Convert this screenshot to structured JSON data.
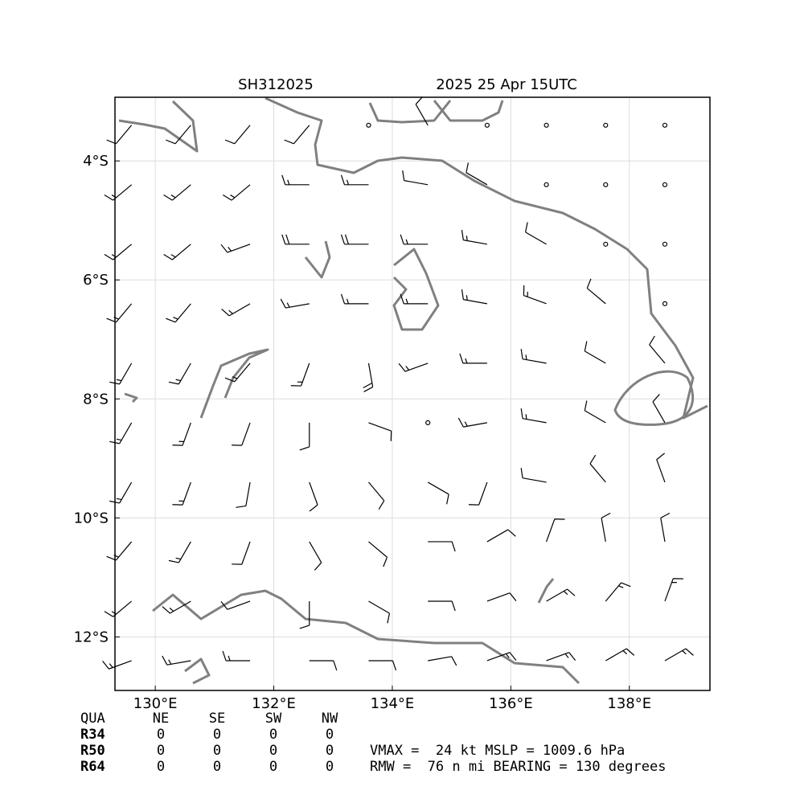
{
  "chart_data": {
    "type": "wind-barbs",
    "title_left": "SH312025",
    "title_right": "2025 25 Apr 15UTC",
    "xlim": [
      129.32,
      139.36
    ],
    "ylim": [
      -12.9,
      -2.93
    ],
    "xticks": [
      {
        "value": 130,
        "label": "130°E"
      },
      {
        "value": 132,
        "label": "132°E"
      },
      {
        "value": 134,
        "label": "134°E"
      },
      {
        "value": 136,
        "label": "136°E"
      },
      {
        "value": 138,
        "label": "138°E"
      }
    ],
    "yticks": [
      {
        "value": -4,
        "label": "4°S"
      },
      {
        "value": -6,
        "label": "6°S"
      },
      {
        "value": -8,
        "label": "8°S"
      },
      {
        "value": -10,
        "label": "10°S"
      },
      {
        "value": -12,
        "label": "12°S"
      }
    ],
    "grid": true,
    "barb_color": "#000000",
    "coast_color": "#808080",
    "barbs": {
      "lons": [
        129.6,
        130.6,
        131.6,
        132.6,
        133.6,
        134.6,
        135.6,
        136.6,
        137.6,
        138.6
      ],
      "lats": [
        -3.4,
        -4.4,
        -5.4,
        -6.4,
        -7.4,
        -8.4,
        -9.4,
        -10.4,
        -11.4,
        -12.4
      ],
      "dir": [
        [
          220,
          220,
          220,
          220,
          0,
          330,
          0,
          0,
          0,
          0
        ],
        [
          230,
          230,
          230,
          270,
          270,
          280,
          300,
          0,
          0,
          0
        ],
        [
          230,
          230,
          250,
          270,
          270,
          270,
          280,
          300,
          0,
          0
        ],
        [
          220,
          220,
          240,
          260,
          270,
          270,
          280,
          290,
          310,
          0
        ],
        [
          210,
          210,
          220,
          200,
          170,
          250,
          270,
          280,
          300,
          320
        ],
        [
          210,
          200,
          200,
          180,
          110,
          0,
          260,
          280,
          300,
          330
        ],
        [
          210,
          200,
          190,
          160,
          140,
          120,
          200,
          280,
          320,
          340
        ],
        [
          220,
          210,
          200,
          150,
          130,
          90,
          60,
          20,
          350,
          350
        ],
        [
          230,
          240,
          250,
          180,
          120,
          90,
          70,
          60,
          40,
          20
        ],
        [
          250,
          260,
          270,
          90,
          90,
          80,
          70,
          70,
          60,
          60
        ]
      ],
      "speed": [
        [
          10,
          10,
          10,
          10,
          0,
          10,
          0,
          0,
          0,
          0
        ],
        [
          15,
          15,
          15,
          15,
          15,
          10,
          10,
          0,
          0,
          0
        ],
        [
          15,
          15,
          15,
          20,
          20,
          15,
          15,
          10,
          0,
          0
        ],
        [
          15,
          15,
          15,
          15,
          15,
          15,
          15,
          15,
          10,
          0
        ],
        [
          15,
          15,
          15,
          15,
          20,
          15,
          15,
          15,
          10,
          10
        ],
        [
          15,
          15,
          10,
          10,
          10,
          0,
          15,
          15,
          10,
          10
        ],
        [
          15,
          15,
          10,
          10,
          10,
          10,
          10,
          10,
          10,
          10
        ],
        [
          15,
          15,
          10,
          10,
          10,
          10,
          10,
          10,
          10,
          10
        ],
        [
          15,
          15,
          10,
          10,
          10,
          10,
          10,
          15,
          15,
          15
        ],
        [
          15,
          15,
          15,
          10,
          10,
          10,
          15,
          15,
          15,
          15
        ]
      ]
    }
  },
  "radii_table": {
    "header": [
      "QUA",
      "NE",
      "SE",
      "SW",
      "NW"
    ],
    "rows": [
      [
        "R34",
        "0",
        "0",
        "0",
        "0"
      ],
      [
        "R50",
        "0",
        "0",
        "0",
        "0"
      ],
      [
        "R64",
        "0",
        "0",
        "0",
        "0"
      ]
    ]
  },
  "stats": [
    "VMAX =  24 kt MSLP = 1009.6 hPa",
    "RMW =  76 n mi BEARING = 130 degrees"
  ]
}
